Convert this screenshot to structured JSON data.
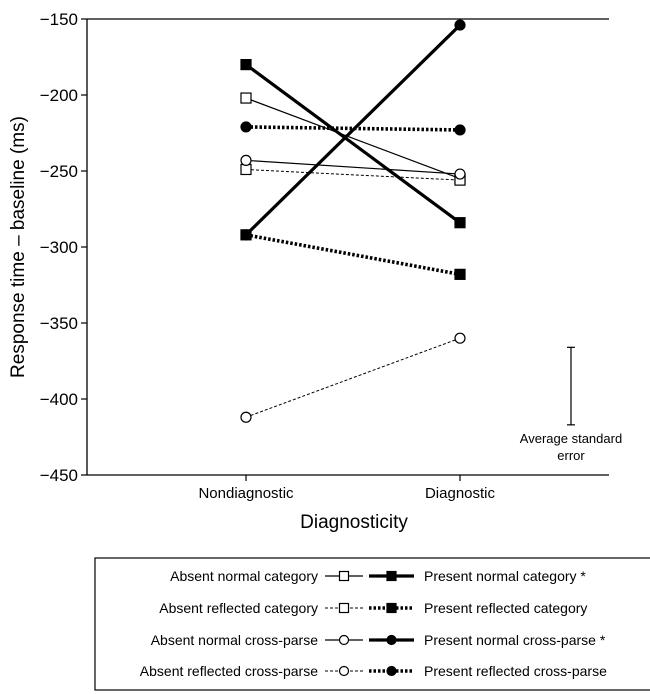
{
  "chart_data": {
    "type": "line",
    "xlabel": "Diagnosticity",
    "ylabel": "Response time – baseline (ms)",
    "ylim": [
      -450,
      -150
    ],
    "yticks": [
      "−150",
      "−200",
      "−250",
      "−300",
      "−350",
      "−400",
      "−450"
    ],
    "ytick_values": [
      -150,
      -200,
      -250,
      -300,
      -350,
      -400,
      -450
    ],
    "categories": [
      "Nondiagnostic",
      "Diagnostic"
    ],
    "grid": false,
    "legend_position": "bottom",
    "series": [
      {
        "name": "Absent normal category",
        "values": [
          -202,
          -255
        ],
        "marker": "square-open",
        "line": "thin-solid"
      },
      {
        "name": "Absent reflected category",
        "values": [
          -249,
          -256
        ],
        "marker": "square-open",
        "line": "thin-dashed"
      },
      {
        "name": "Absent normal cross-parse",
        "values": [
          -243,
          -252
        ],
        "marker": "circle-open",
        "line": "thin-solid"
      },
      {
        "name": "Absent reflected cross-parse",
        "values": [
          -412,
          -360
        ],
        "marker": "circle-open",
        "line": "thin-dashed"
      },
      {
        "name": "Present normal category *",
        "values": [
          -180,
          -284
        ],
        "marker": "square-filled",
        "line": "thick-solid"
      },
      {
        "name": "Present reflected category",
        "values": [
          -292,
          -318
        ],
        "marker": "square-filled",
        "line": "thick-dotted"
      },
      {
        "name": "Present normal cross-parse *",
        "values": [
          -292,
          -154
        ],
        "marker": "circle-filled",
        "line": "thick-solid"
      },
      {
        "name": "Present reflected cross-parse",
        "values": [
          -221,
          -223
        ],
        "marker": "circle-filled",
        "line": "thick-dotted"
      }
    ],
    "error_bar": {
      "label": "Average standard error",
      "low": -417,
      "high": -366
    }
  }
}
